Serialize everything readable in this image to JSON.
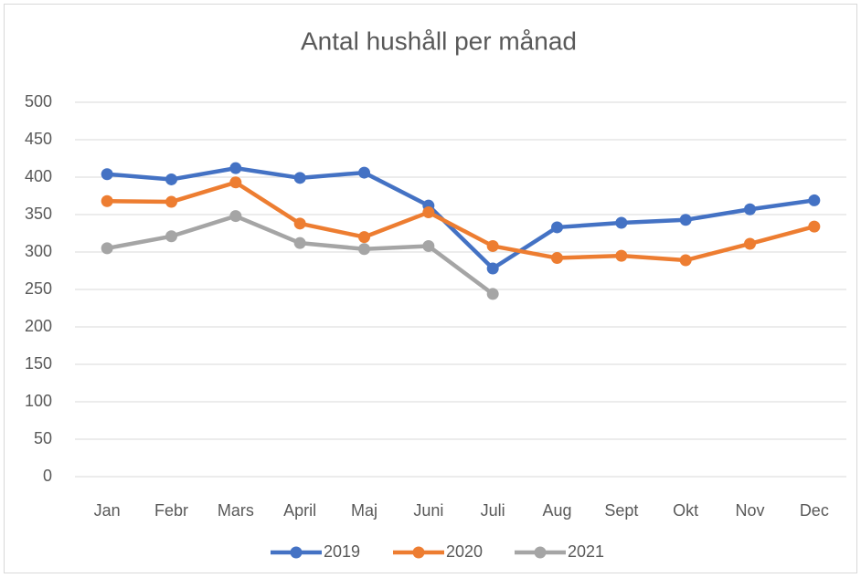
{
  "chart_data": {
    "type": "line",
    "title": "Antal hushåll per månad",
    "categories": [
      "Jan",
      "Febr",
      "Mars",
      "April",
      "Maj",
      "Juni",
      "Juli",
      "Aug",
      "Sept",
      "Okt",
      "Nov",
      "Dec"
    ],
    "series": [
      {
        "name": "2019",
        "color": "#4472c4",
        "values": [
          404,
          397,
          412,
          399,
          406,
          362,
          278,
          333,
          339,
          343,
          357,
          369
        ]
      },
      {
        "name": "2020",
        "color": "#ed7d31",
        "values": [
          368,
          367,
          393,
          338,
          320,
          353,
          308,
          292,
          295,
          289,
          311,
          334
        ]
      },
      {
        "name": "2021",
        "color": "#a5a5a5",
        "values": [
          305,
          321,
          348,
          312,
          304,
          308,
          244,
          null,
          null,
          null,
          null,
          null
        ]
      }
    ],
    "ylim": [
      0,
      500
    ],
    "yticks": [
      0,
      50,
      100,
      150,
      200,
      250,
      300,
      350,
      400,
      450,
      500
    ],
    "grid": true,
    "legend": "bottom"
  }
}
